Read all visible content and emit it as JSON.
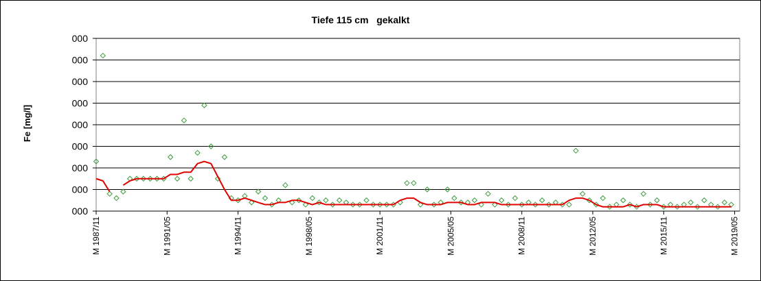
{
  "chart_data": {
    "type": "scatter-line",
    "title": "Tiefe 115 cm   gekalkt",
    "ylabel": "Fe [mg/l]",
    "x": [
      "1987/11",
      "1988/03",
      "1988/07",
      "1988/11",
      "1989/03",
      "1989/07",
      "1989/11",
      "1990/03",
      "1990/07",
      "1990/11",
      "1991/03",
      "1991/07",
      "1991/11",
      "1992/03",
      "1992/07",
      "1992/11",
      "1993/03",
      "1993/07",
      "1993/11",
      "1994/03",
      "1994/07",
      "1994/11",
      "1995/03",
      "1995/07",
      "1995/11",
      "1996/03",
      "1996/07",
      "1996/11",
      "1997/03",
      "1997/07",
      "1997/11",
      "1998/03",
      "1998/07",
      "1998/11",
      "1999/03",
      "1999/07",
      "1999/11",
      "2000/03",
      "2000/07",
      "2000/11",
      "2001/03",
      "2001/07",
      "2001/11",
      "2002/03",
      "2002/07",
      "2002/11",
      "2003/03",
      "2003/07",
      "2003/11",
      "2004/03",
      "2004/07",
      "2004/11",
      "2005/03",
      "2005/07",
      "2005/11",
      "2006/03",
      "2006/07",
      "2006/11",
      "2007/03",
      "2007/07",
      "2007/11",
      "2008/03",
      "2008/07",
      "2008/11",
      "2009/03",
      "2009/07",
      "2009/11",
      "2010/03",
      "2010/07",
      "2010/11",
      "2011/03",
      "2011/07",
      "2011/11",
      "2012/03",
      "2012/07",
      "2012/11",
      "2013/03",
      "2013/07",
      "2013/11",
      "2014/03",
      "2014/07",
      "2014/11",
      "2015/03",
      "2015/07",
      "2015/11",
      "2016/03",
      "2016/07",
      "2016/11",
      "2017/03",
      "2017/07",
      "2017/11",
      "2018/03",
      "2018/07",
      "2018/11",
      "2019/03"
    ],
    "series": [
      {
        "type": "scatter",
        "color": "#3a9b3a",
        "values": [
          2.3,
          7.2,
          0.8,
          0.6,
          0.9,
          1.5,
          1.5,
          1.5,
          1.5,
          1.5,
          1.5,
          2.5,
          1.5,
          4.2,
          1.5,
          2.7,
          4.9,
          3.0,
          1.5,
          2.5,
          0.6,
          0.5,
          0.7,
          0.4,
          0.9,
          0.6,
          0.3,
          0.5,
          1.2,
          0.4,
          0.5,
          0.3,
          0.6,
          0.4,
          0.5,
          0.3,
          0.5,
          0.4,
          0.3,
          0.3,
          0.5,
          0.3,
          0.3,
          0.3,
          0.3,
          0.4,
          1.3,
          1.3,
          0.3,
          1.0,
          0.3,
          0.4,
          1.0,
          0.6,
          0.4,
          0.4,
          0.5,
          0.3,
          0.8,
          0.3,
          0.5,
          0.3,
          0.6,
          0.3,
          0.4,
          0.3,
          0.5,
          0.3,
          0.4,
          0.3,
          0.3,
          2.8,
          0.8,
          0.5,
          0.3,
          0.6,
          0.2,
          0.3,
          0.5,
          0.3,
          0.2,
          0.8,
          0.3,
          0.5,
          0.2,
          0.3,
          0.2,
          0.3,
          0.4,
          0.2,
          0.5,
          0.3,
          0.2,
          0.4,
          0.3
        ]
      },
      {
        "type": "line",
        "color": "#e00000",
        "values": [
          1.5,
          1.4,
          0.9,
          null,
          1.2,
          1.4,
          1.5,
          1.5,
          1.5,
          1.5,
          1.5,
          1.7,
          1.7,
          1.8,
          1.8,
          2.2,
          2.3,
          2.2,
          1.6,
          1.0,
          0.5,
          0.5,
          0.6,
          0.5,
          0.4,
          0.3,
          0.3,
          0.4,
          0.4,
          0.5,
          0.5,
          0.4,
          0.3,
          0.4,
          0.3,
          0.3,
          0.3,
          0.3,
          0.3,
          0.3,
          0.3,
          0.3,
          0.3,
          0.3,
          0.3,
          0.5,
          0.6,
          0.6,
          0.4,
          0.3,
          0.3,
          0.3,
          0.4,
          0.4,
          0.4,
          0.3,
          0.3,
          0.4,
          0.4,
          0.4,
          0.3,
          0.3,
          0.3,
          0.3,
          0.3,
          0.3,
          0.3,
          0.3,
          0.3,
          0.3,
          0.5,
          0.6,
          0.6,
          0.5,
          0.3,
          0.2,
          0.2,
          0.2,
          0.2,
          0.3,
          0.2,
          0.3,
          0.3,
          0.3,
          0.2,
          0.2,
          0.2,
          0.2,
          0.2,
          0.2,
          0.2,
          0.2,
          0.2,
          0.2,
          0.2
        ]
      }
    ],
    "xlim": [
      "1987/11",
      "2019/08"
    ],
    "xticks": [
      {
        "value": "1987/11",
        "label": "M 1987/11"
      },
      {
        "value": "1991/05",
        "label": "M 1991/05"
      },
      {
        "value": "1994/11",
        "label": "M 1994/11"
      },
      {
        "value": "1998/05",
        "label": "M 1998/05"
      },
      {
        "value": "2001/11",
        "label": "M 2001/11"
      },
      {
        "value": "2005/05",
        "label": "M 2005/05"
      },
      {
        "value": "2008/11",
        "label": "M 2008/11"
      },
      {
        "value": "2012/05",
        "label": "M 2012/05"
      },
      {
        "value": "2015/11",
        "label": "M 2015/11"
      },
      {
        "value": "2019/05",
        "label": "M 2019/05"
      }
    ],
    "ylim": [
      0,
      8
    ],
    "yticks": [
      {
        "value": 0,
        "label": "000"
      },
      {
        "value": 1,
        "label": "000"
      },
      {
        "value": 2,
        "label": "000"
      },
      {
        "value": 3,
        "label": "000"
      },
      {
        "value": 4,
        "label": "000"
      },
      {
        "value": 5,
        "label": "000"
      },
      {
        "value": 6,
        "label": "000"
      },
      {
        "value": 7,
        "label": "000"
      },
      {
        "value": 8,
        "label": "000"
      }
    ],
    "grid": true
  }
}
